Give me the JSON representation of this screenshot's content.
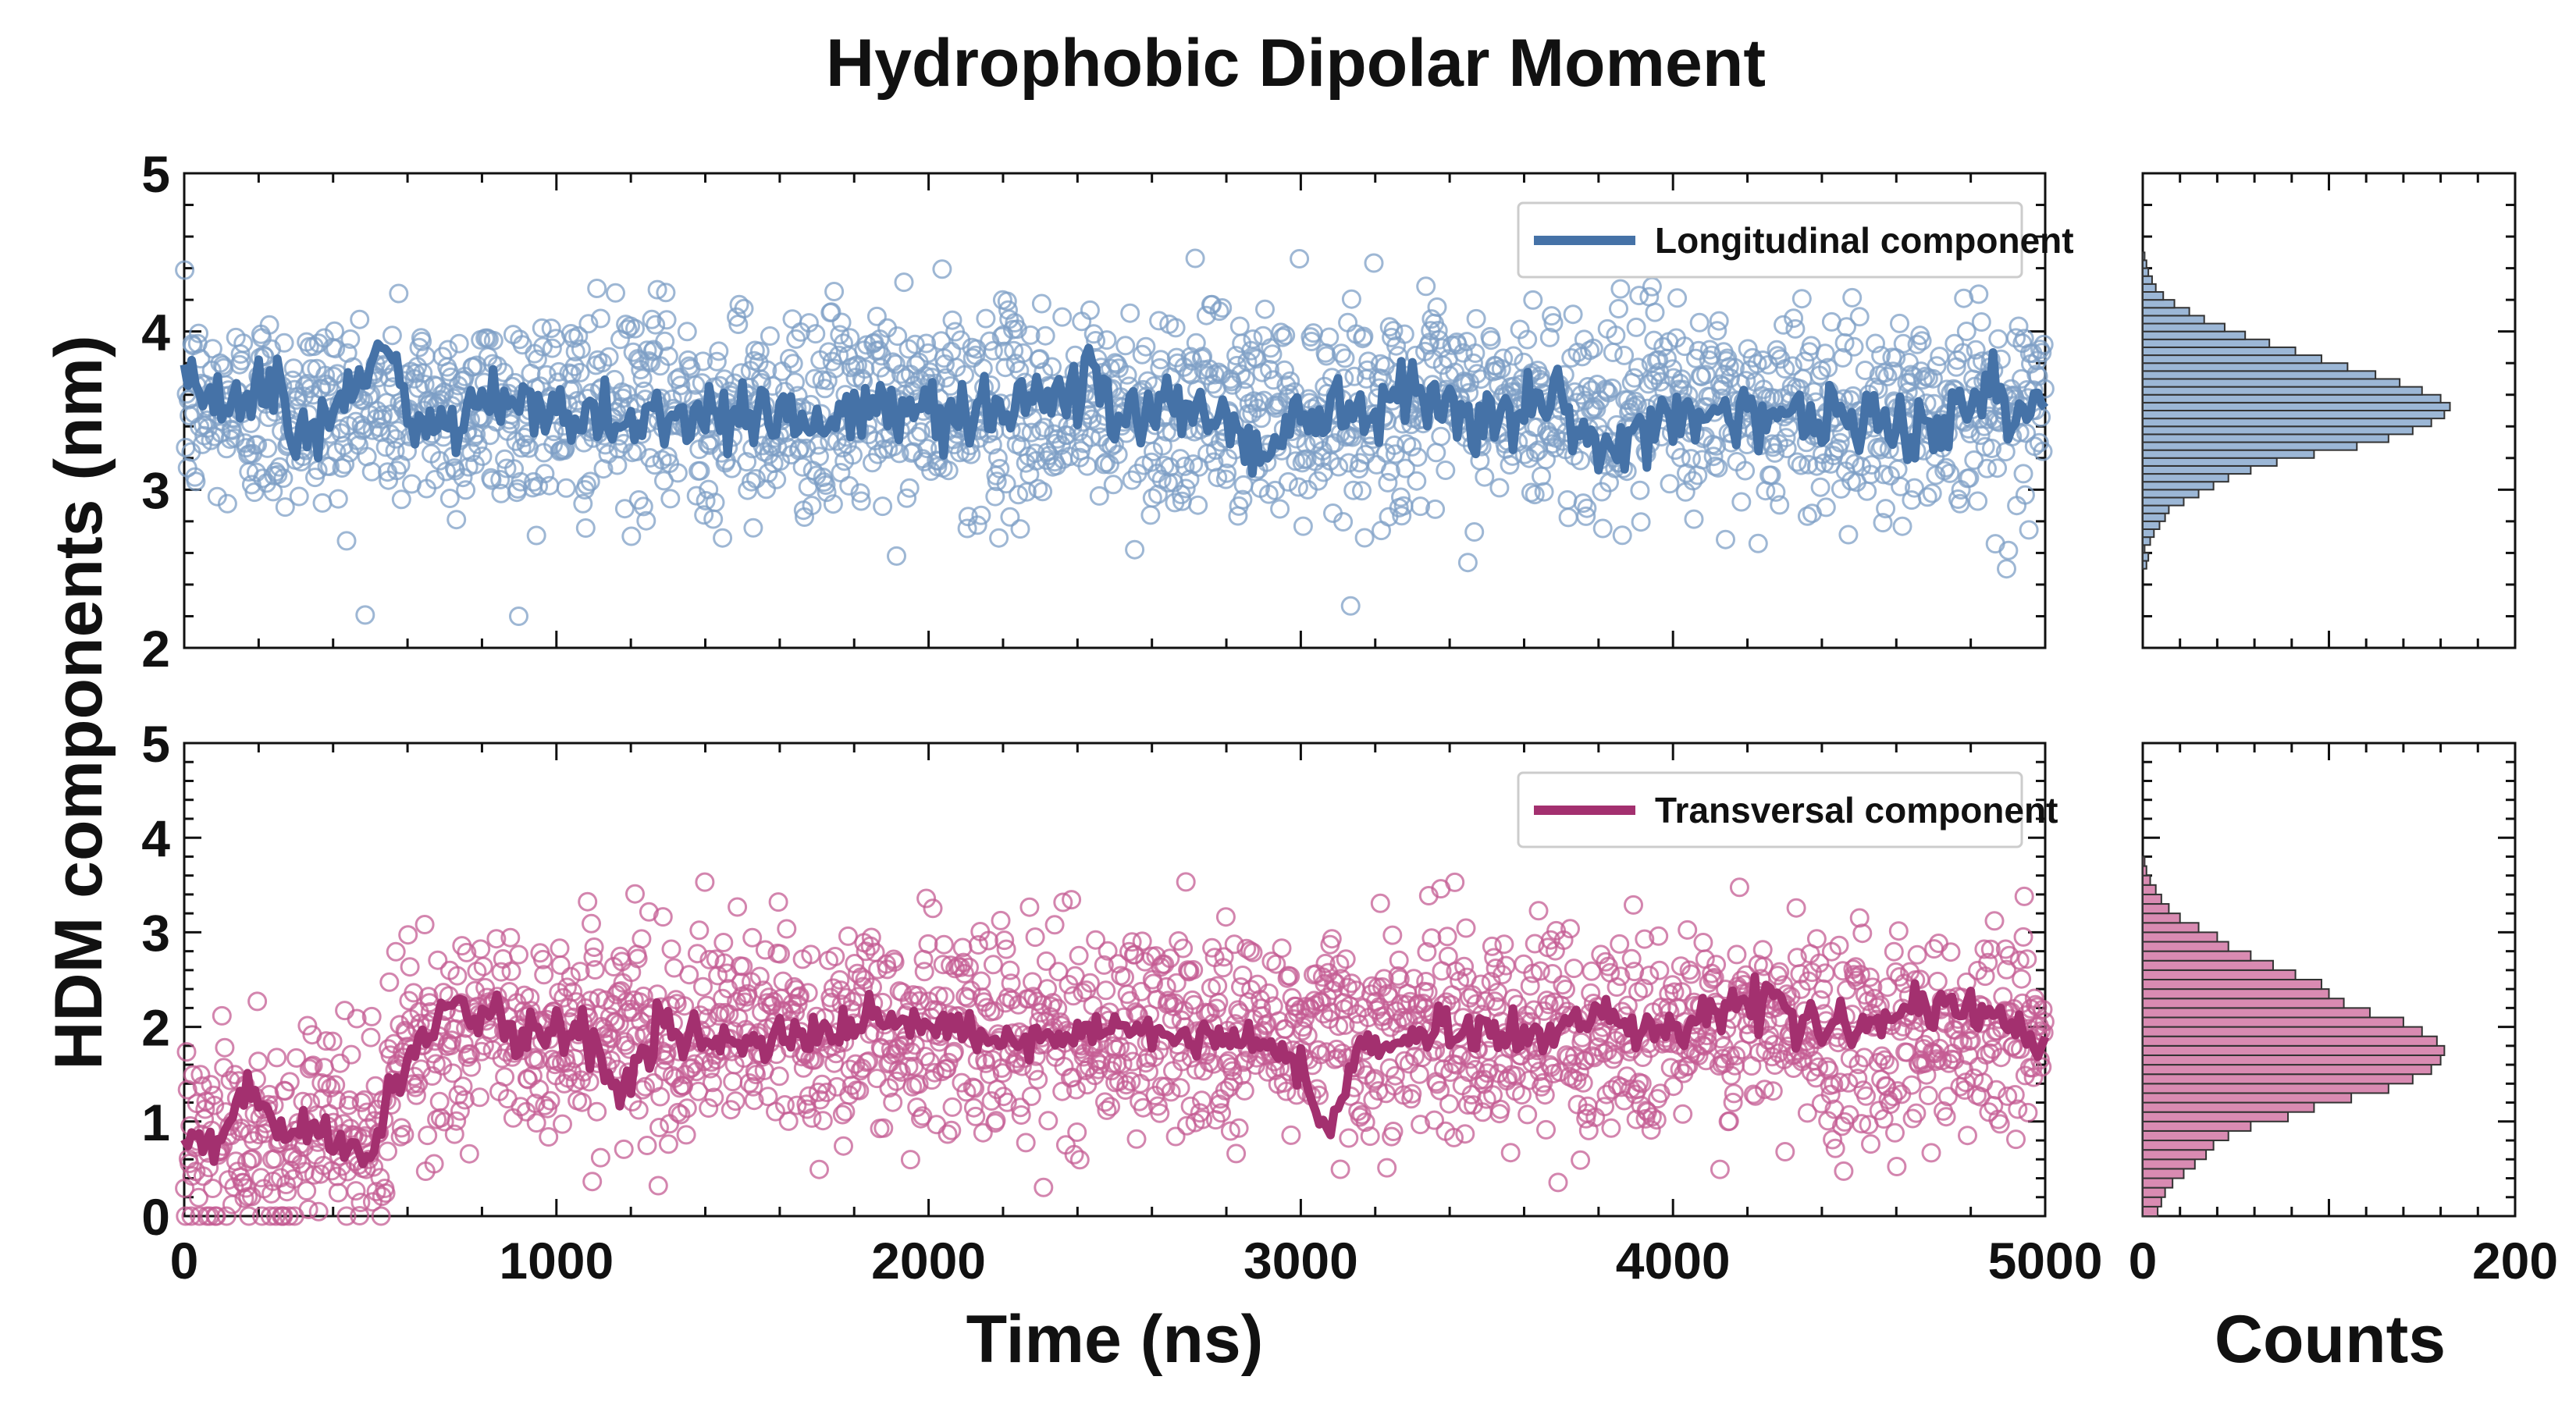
{
  "title": "Hydrophobic Dipolar Moment",
  "ylabel": "HDM components (nm)",
  "xlabel": "Time (ns)",
  "hist_xlabel": "Counts",
  "colors": {
    "longitudinal": "#4572a7",
    "longitudinal_scatter": "#7d9fc6",
    "longitudinal_hist": "#9cb7d6",
    "transversal": "#a3306f",
    "transversal_scatter": "#c45c93",
    "transversal_hist": "#d98bb2"
  },
  "chart_data": [
    {
      "type": "scatter",
      "name": "longitudinal-timeseries",
      "xlim": [
        0,
        5000
      ],
      "ylim": [
        2,
        5
      ],
      "xticks": [
        0,
        1000,
        2000,
        3000,
        4000,
        5000
      ],
      "yticks": [
        2,
        3,
        4,
        5
      ],
      "show_xtick_labels": false,
      "legend": "top-right",
      "series": [
        {
          "name": "Longitudinal component",
          "kind": "scatter+running-mean",
          "n_points": 2000,
          "mean": 3.5,
          "std": 0.32,
          "min": 2.2,
          "max": 4.5,
          "running_mean": [
            [
              0,
              3.7
            ],
            [
              100,
              3.55
            ],
            [
              200,
              3.75
            ],
            [
              250,
              3.6
            ],
            [
              300,
              3.3
            ],
            [
              400,
              3.5
            ],
            [
              500,
              3.75
            ],
            [
              540,
              3.95
            ],
            [
              600,
              3.45
            ],
            [
              700,
              3.35
            ],
            [
              800,
              3.55
            ],
            [
              1000,
              3.5
            ],
            [
              1200,
              3.45
            ],
            [
              1500,
              3.5
            ],
            [
              1700,
              3.45
            ],
            [
              2000,
              3.5
            ],
            [
              2200,
              3.55
            ],
            [
              2400,
              3.6
            ],
            [
              2440,
              3.85
            ],
            [
              2500,
              3.4
            ],
            [
              2600,
              3.55
            ],
            [
              2800,
              3.45
            ],
            [
              2900,
              3.2
            ],
            [
              3000,
              3.55
            ],
            [
              3200,
              3.5
            ],
            [
              3300,
              3.7
            ],
            [
              3500,
              3.45
            ],
            [
              3700,
              3.55
            ],
            [
              3800,
              3.2
            ],
            [
              4000,
              3.5
            ],
            [
              4200,
              3.5
            ],
            [
              4400,
              3.45
            ],
            [
              4600,
              3.4
            ],
            [
              4800,
              3.5
            ],
            [
              5000,
              3.55
            ]
          ]
        }
      ]
    },
    {
      "type": "scatter",
      "name": "transversal-timeseries",
      "xlim": [
        0,
        5000
      ],
      "ylim": [
        0,
        5
      ],
      "xticks": [
        0,
        1000,
        2000,
        3000,
        4000,
        5000
      ],
      "yticks": [
        0,
        1,
        2,
        3,
        4,
        5
      ],
      "show_xtick_labels": true,
      "legend": "top-right",
      "series": [
        {
          "name": "Transversal component",
          "kind": "scatter+running-mean",
          "n_points": 2000,
          "mean_segments": [
            {
              "x_from": 0,
              "x_to": 550,
              "mean": 0.85
            },
            {
              "x_from": 550,
              "x_to": 700,
              "mean": 1.7
            },
            {
              "x_from": 700,
              "x_to": 5000,
              "mean": 1.95
            }
          ],
          "std": 0.55,
          "min": 0.0,
          "max": 4.0,
          "running_mean": [
            [
              0,
              0.7
            ],
            [
              100,
              0.8
            ],
            [
              170,
              1.4
            ],
            [
              250,
              0.9
            ],
            [
              350,
              1.0
            ],
            [
              450,
              0.7
            ],
            [
              500,
              0.6
            ],
            [
              550,
              1.3
            ],
            [
              600,
              1.6
            ],
            [
              700,
              2.3
            ],
            [
              800,
              2.1
            ],
            [
              900,
              1.9
            ],
            [
              1000,
              2.0
            ],
            [
              1100,
              1.9
            ],
            [
              1150,
              1.3
            ],
            [
              1300,
              2.0
            ],
            [
              1500,
              1.8
            ],
            [
              1700,
              1.9
            ],
            [
              1900,
              2.1
            ],
            [
              2100,
              1.9
            ],
            [
              2300,
              1.8
            ],
            [
              2500,
              2.0
            ],
            [
              2700,
              1.9
            ],
            [
              2900,
              1.8
            ],
            [
              3000,
              1.6
            ],
            [
              3070,
              0.9
            ],
            [
              3150,
              1.7
            ],
            [
              3400,
              2.0
            ],
            [
              3600,
              1.9
            ],
            [
              3800,
              2.1
            ],
            [
              4000,
              2.0
            ],
            [
              4200,
              2.3
            ],
            [
              4400,
              2.0
            ],
            [
              4600,
              2.1
            ],
            [
              4800,
              2.2
            ],
            [
              5000,
              1.8
            ]
          ]
        }
      ]
    },
    {
      "type": "bar",
      "name": "longitudinal-histogram",
      "orientation": "horizontal",
      "xlim": [
        0,
        200
      ],
      "ylim": [
        2,
        5
      ],
      "xticks": [
        0,
        200
      ],
      "show_tick_labels": false,
      "bin_width": 0.05,
      "bins_start": 2.5,
      "counts": [
        2,
        3,
        1,
        4,
        6,
        9,
        12,
        14,
        22,
        30,
        38,
        46,
        58,
        72,
        92,
        115,
        132,
        145,
        155,
        162,
        165,
        160,
        150,
        138,
        125,
        110,
        96,
        82,
        68,
        55,
        44,
        33,
        25,
        17,
        11,
        7,
        5,
        3,
        2,
        1
      ]
    },
    {
      "type": "bar",
      "name": "transversal-histogram",
      "orientation": "horizontal",
      "xlim": [
        0,
        200
      ],
      "ylim": [
        0,
        5
      ],
      "xticks": [
        0,
        200
      ],
      "show_tick_labels": true,
      "bin_width": 0.1,
      "bins_start": 0.0,
      "counts": [
        8,
        10,
        12,
        16,
        22,
        28,
        34,
        38,
        46,
        58,
        78,
        92,
        112,
        132,
        145,
        155,
        160,
        162,
        158,
        150,
        140,
        122,
        108,
        100,
        96,
        82,
        70,
        58,
        46,
        40,
        30,
        20,
        14,
        10,
        7,
        4,
        2,
        1
      ]
    }
  ],
  "axis_ticks": {
    "timeseries_x": [
      "0",
      "1000",
      "2000",
      "3000",
      "4000",
      "5000"
    ],
    "longitudinal_y": [
      "2",
      "3",
      "4",
      "5"
    ],
    "transversal_y": [
      "0",
      "1",
      "2",
      "3",
      "4",
      "5"
    ],
    "hist_x": [
      "0",
      "200"
    ]
  }
}
